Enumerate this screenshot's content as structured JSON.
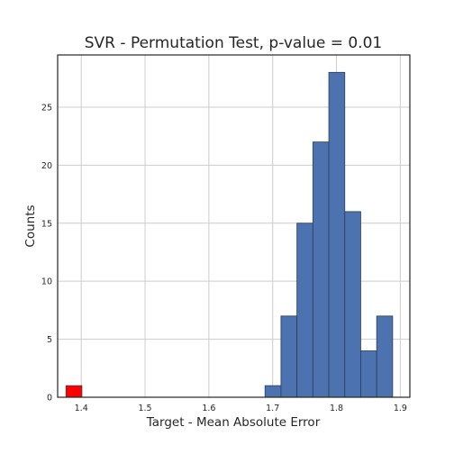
{
  "chart_data": {
    "type": "bar",
    "title": "SVR - Permutation Test, p-value = 0.01",
    "xlabel": "Target - Mean Absolute Error",
    "ylabel": "Counts",
    "xlim": [
      1.363,
      1.915
    ],
    "ylim": [
      0,
      29.5
    ],
    "xticks": [
      "1.4",
      "1.5",
      "1.6",
      "1.7",
      "1.8",
      "1.9"
    ],
    "yticks": [
      "0",
      "5",
      "10",
      "15",
      "20",
      "25"
    ],
    "grid": true,
    "series": [
      {
        "color": "#4c72b0",
        "bins": [
          {
            "x0": 1.688,
            "x1": 1.713,
            "count": 1
          },
          {
            "x0": 1.713,
            "x1": 1.738,
            "count": 7
          },
          {
            "x0": 1.738,
            "x1": 1.763,
            "count": 15
          },
          {
            "x0": 1.763,
            "x1": 1.788,
            "count": 22
          },
          {
            "x0": 1.788,
            "x1": 1.813,
            "count": 28
          },
          {
            "x0": 1.813,
            "x1": 1.838,
            "count": 16
          },
          {
            "x0": 1.838,
            "x1": 1.863,
            "count": 4
          },
          {
            "x0": 1.863,
            "x1": 1.888,
            "count": 7
          }
        ]
      },
      {
        "color": "#ff0000",
        "bins": [
          {
            "x0": 1.376,
            "x1": 1.401,
            "count": 1
          }
        ]
      }
    ]
  }
}
